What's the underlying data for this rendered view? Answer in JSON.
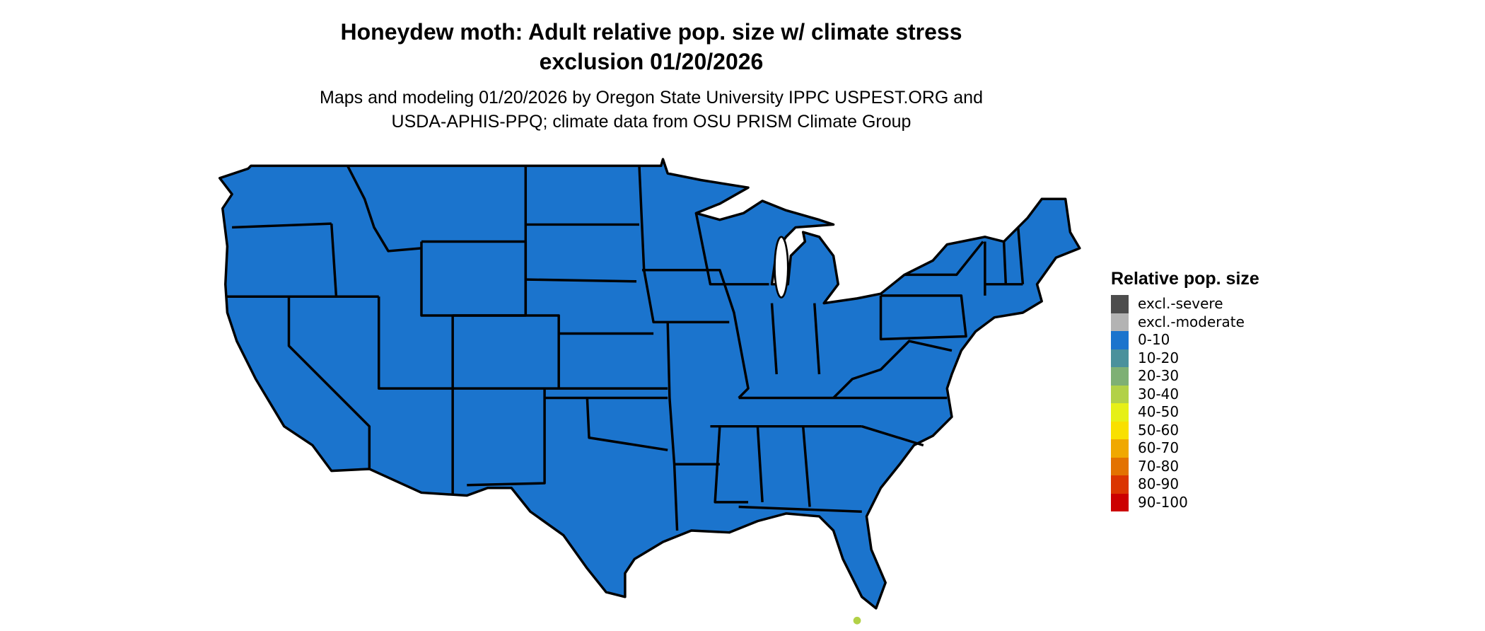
{
  "title": {
    "line1": "Honeydew moth: Adult relative pop. size w/ climate stress",
    "line2": "exclusion 01/20/2026"
  },
  "subtitle": {
    "line1": "Maps and modeling 01/20/2026 by Oregon State University IPPC USPEST.ORG and",
    "line2": "USDA-APHIS-PPQ; climate data from OSU PRISM Climate Group"
  },
  "map": {
    "region": "Contiguous United States",
    "dominant_class": "0-10",
    "fill_color": "#1b74cd",
    "border_color": "#000000",
    "minor_class_spots": [
      {
        "class": "30-40",
        "location": "Florida Keys"
      }
    ]
  },
  "legend": {
    "title": "Relative pop. size",
    "items": [
      {
        "label": "excl.-severe",
        "color": "#4d4d4d"
      },
      {
        "label": "excl.-moderate",
        "color": "#b3b3b3"
      },
      {
        "label": "0-10",
        "color": "#1b74cd"
      },
      {
        "label": "10-20",
        "color": "#4a919c"
      },
      {
        "label": "20-30",
        "color": "#7eb074"
      },
      {
        "label": "30-40",
        "color": "#b2d147"
      },
      {
        "label": "40-50",
        "color": "#e6f017"
      },
      {
        "label": "50-60",
        "color": "#f9e000"
      },
      {
        "label": "60-70",
        "color": "#f0a800"
      },
      {
        "label": "70-80",
        "color": "#e37200"
      },
      {
        "label": "80-90",
        "color": "#db3500"
      },
      {
        "label": "90-100",
        "color": "#cc0000"
      }
    ]
  }
}
